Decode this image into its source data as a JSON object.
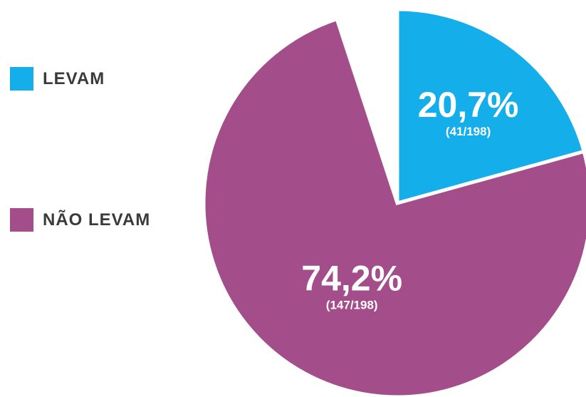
{
  "chart_data": {
    "type": "pie",
    "slices": [
      {
        "label": "LEVAM",
        "percent_label": "20,7%",
        "fraction_label": "(41/198)",
        "value": 41,
        "color": "#14aeea"
      },
      {
        "label": "NÃO LEVAM",
        "percent_label": "74,2%",
        "fraction_label": "(147/198)",
        "value": 147,
        "color": "#a44d8b"
      }
    ],
    "total": 198,
    "legend": {
      "placement": "left"
    }
  }
}
